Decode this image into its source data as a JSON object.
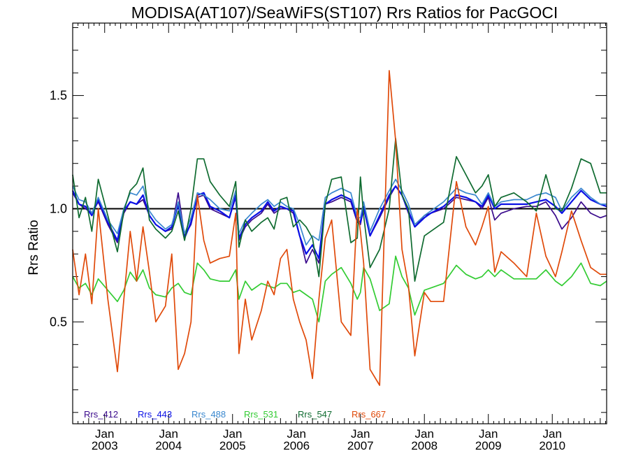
{
  "chart_data": {
    "type": "line",
    "title": "MODISA(AT107)/SeaWiFS(ST107)  Rrs Ratios for PacGOCI",
    "ylabel": "Rrs Ratio",
    "xlabel": "",
    "xlim": [
      2002.5,
      2010.85
    ],
    "ylim": [
      0.05,
      1.82
    ],
    "y_ticks": [
      {
        "value": 0.5,
        "label": "0.5"
      },
      {
        "value": 1.0,
        "label": "1.0"
      },
      {
        "value": 1.5,
        "label": "1.5"
      }
    ],
    "x_ticks": [
      {
        "value": 2003.0,
        "month": "Jan",
        "year": "2003"
      },
      {
        "value": 2004.0,
        "month": "Jan",
        "year": "2004"
      },
      {
        "value": 2005.0,
        "month": "Jan",
        "year": "2005"
      },
      {
        "value": 2006.0,
        "month": "Jan",
        "year": "2006"
      },
      {
        "value": 2007.0,
        "month": "Jan",
        "year": "2007"
      },
      {
        "value": 2008.0,
        "month": "Jan",
        "year": "2008"
      },
      {
        "value": 2009.0,
        "month": "Jan",
        "year": "2009"
      },
      {
        "value": 2010.0,
        "month": "Jan",
        "year": "2010"
      }
    ],
    "reference_line": 1.0,
    "legend_position": "bottom-left",
    "series": [
      {
        "name": "Rrs_412",
        "color": "#3a0a8c",
        "x": [
          2002.5,
          2002.6,
          2002.7,
          2002.8,
          2002.9,
          2003.05,
          2003.2,
          2003.3,
          2003.4,
          2003.5,
          2003.6,
          2003.7,
          2003.8,
          2003.95,
          2004.05,
          2004.15,
          2004.25,
          2004.35,
          2004.45,
          2004.55,
          2004.65,
          2004.8,
          2004.95,
          2005.05,
          2005.1,
          2005.2,
          2005.3,
          2005.45,
          2005.55,
          2005.65,
          2005.75,
          2005.85,
          2005.95,
          2006.05,
          2006.15,
          2006.25,
          2006.35,
          2006.45,
          2006.55,
          2006.7,
          2006.85,
          2006.95,
          2007.0,
          2007.05,
          2007.15,
          2007.3,
          2007.45,
          2007.55,
          2007.65,
          2007.75,
          2007.85,
          2008.0,
          2008.1,
          2008.3,
          2008.5,
          2008.65,
          2008.8,
          2008.9,
          2009.0,
          2009.1,
          2009.2,
          2009.4,
          2009.6,
          2009.75,
          2009.9,
          2010.05,
          2010.15,
          2010.3,
          2010.45,
          2010.6,
          2010.75,
          2010.85
        ],
        "values": [
          1.07,
          1.02,
          1.0,
          0.98,
          1.03,
          0.93,
          0.85,
          0.98,
          1.03,
          1.02,
          1.04,
          0.97,
          0.93,
          0.9,
          0.91,
          1.07,
          0.88,
          0.93,
          1.05,
          1.06,
          1.0,
          0.98,
          0.96,
          1.05,
          0.86,
          0.92,
          0.95,
          0.98,
          1.02,
          0.98,
          1.0,
          1.0,
          0.98,
          0.88,
          0.76,
          0.82,
          0.76,
          1.02,
          1.03,
          1.05,
          1.03,
          0.94,
          0.93,
          1.0,
          0.88,
          0.96,
          1.05,
          1.1,
          1.06,
          0.98,
          0.92,
          0.97,
          0.98,
          1.0,
          1.05,
          1.04,
          1.03,
          1.0,
          1.05,
          0.95,
          0.98,
          1.0,
          1.01,
          1.01,
          1.03,
          0.97,
          0.91,
          0.96,
          1.03,
          0.98,
          0.96,
          0.97
        ]
      },
      {
        "name": "Rrs_443",
        "color": "#0a10e6",
        "x": [
          2002.5,
          2002.6,
          2002.7,
          2002.8,
          2002.9,
          2003.05,
          2003.2,
          2003.3,
          2003.4,
          2003.5,
          2003.6,
          2003.7,
          2003.8,
          2003.95,
          2004.05,
          2004.15,
          2004.25,
          2004.35,
          2004.45,
          2004.55,
          2004.65,
          2004.8,
          2004.95,
          2005.05,
          2005.1,
          2005.2,
          2005.3,
          2005.45,
          2005.55,
          2005.65,
          2005.75,
          2005.85,
          2005.95,
          2006.05,
          2006.15,
          2006.25,
          2006.35,
          2006.45,
          2006.55,
          2006.7,
          2006.85,
          2006.95,
          2007.0,
          2007.05,
          2007.15,
          2007.3,
          2007.45,
          2007.55,
          2007.65,
          2007.75,
          2007.85,
          2008.0,
          2008.1,
          2008.3,
          2008.5,
          2008.65,
          2008.8,
          2008.9,
          2009.0,
          2009.1,
          2009.2,
          2009.4,
          2009.6,
          2009.75,
          2009.9,
          2010.05,
          2010.15,
          2010.3,
          2010.45,
          2010.6,
          2010.75,
          2010.85
        ],
        "values": [
          1.08,
          1.02,
          1.01,
          0.97,
          1.04,
          0.94,
          0.86,
          0.99,
          1.03,
          1.02,
          1.06,
          0.97,
          0.93,
          0.9,
          0.92,
          1.02,
          0.87,
          0.94,
          1.06,
          1.07,
          1.01,
          0.99,
          0.96,
          1.06,
          0.87,
          0.93,
          0.96,
          0.99,
          1.03,
          0.99,
          1.01,
          1.0,
          0.99,
          0.88,
          0.8,
          0.84,
          0.78,
          1.02,
          1.04,
          1.06,
          1.04,
          0.95,
          0.94,
          1.01,
          0.88,
          0.97,
          1.06,
          1.1,
          1.06,
          0.99,
          0.92,
          0.96,
          0.98,
          1.01,
          1.06,
          1.05,
          1.03,
          1.01,
          1.06,
          1.0,
          1.02,
          1.02,
          1.02,
          1.03,
          1.04,
          1.01,
          0.98,
          1.03,
          1.08,
          1.04,
          1.02,
          1.01
        ]
      },
      {
        "name": "Rrs_488",
        "color": "#3a88cf",
        "x": [
          2002.5,
          2002.6,
          2002.7,
          2002.8,
          2002.9,
          2003.05,
          2003.2,
          2003.3,
          2003.4,
          2003.5,
          2003.6,
          2003.7,
          2003.8,
          2003.95,
          2004.05,
          2004.15,
          2004.25,
          2004.35,
          2004.45,
          2004.55,
          2004.65,
          2004.8,
          2004.95,
          2005.05,
          2005.1,
          2005.2,
          2005.3,
          2005.45,
          2005.55,
          2005.65,
          2005.75,
          2005.85,
          2005.95,
          2006.05,
          2006.15,
          2006.25,
          2006.35,
          2006.45,
          2006.55,
          2006.7,
          2006.85,
          2006.95,
          2007.0,
          2007.05,
          2007.15,
          2007.3,
          2007.45,
          2007.55,
          2007.65,
          2007.75,
          2007.85,
          2008.0,
          2008.1,
          2008.3,
          2008.5,
          2008.65,
          2008.8,
          2008.9,
          2009.0,
          2009.1,
          2009.2,
          2009.4,
          2009.6,
          2009.75,
          2009.9,
          2010.05,
          2010.15,
          2010.3,
          2010.45,
          2010.6,
          2010.75,
          2010.85
        ],
        "values": [
          1.1,
          1.04,
          1.03,
          0.98,
          1.05,
          0.95,
          0.89,
          1.0,
          1.07,
          1.06,
          1.1,
          0.99,
          0.95,
          0.91,
          0.93,
          1.03,
          0.89,
          0.96,
          1.07,
          1.06,
          1.04,
          1.0,
          0.99,
          1.08,
          0.89,
          0.95,
          0.98,
          1.02,
          1.04,
          1.01,
          1.03,
          1.01,
          1.0,
          0.93,
          0.84,
          0.88,
          0.86,
          1.05,
          1.07,
          1.09,
          1.07,
          0.96,
          0.96,
          1.03,
          0.9,
          1.0,
          1.08,
          1.13,
          1.08,
          1.02,
          0.93,
          0.97,
          0.99,
          1.03,
          1.09,
          1.07,
          1.06,
          1.02,
          1.07,
          1.01,
          1.03,
          1.04,
          1.04,
          1.06,
          1.07,
          1.05,
          0.99,
          1.05,
          1.09,
          1.05,
          1.02,
          1.02
        ]
      },
      {
        "name": "Rrs_531",
        "color": "#33cc33",
        "x": [
          2002.5,
          2002.6,
          2002.7,
          2002.8,
          2002.9,
          2003.05,
          2003.2,
          2003.3,
          2003.4,
          2003.5,
          2003.6,
          2003.7,
          2003.8,
          2003.95,
          2004.05,
          2004.15,
          2004.25,
          2004.35,
          2004.45,
          2004.55,
          2004.65,
          2004.8,
          2004.95,
          2005.05,
          2005.1,
          2005.2,
          2005.3,
          2005.45,
          2005.55,
          2005.65,
          2005.75,
          2005.85,
          2005.95,
          2006.05,
          2006.15,
          2006.25,
          2006.35,
          2006.45,
          2006.55,
          2006.7,
          2006.85,
          2006.95,
          2007.0,
          2007.05,
          2007.15,
          2007.3,
          2007.45,
          2007.55,
          2007.65,
          2007.75,
          2007.85,
          2008.0,
          2008.1,
          2008.3,
          2008.5,
          2008.65,
          2008.8,
          2008.9,
          2009.0,
          2009.1,
          2009.2,
          2009.4,
          2009.6,
          2009.75,
          2009.9,
          2010.05,
          2010.15,
          2010.3,
          2010.45,
          2010.6,
          2010.75,
          2010.85
        ],
        "values": [
          0.7,
          0.65,
          0.67,
          0.62,
          0.69,
          0.64,
          0.59,
          0.64,
          0.72,
          0.68,
          0.73,
          0.65,
          0.62,
          0.61,
          0.65,
          0.67,
          0.63,
          0.62,
          0.76,
          0.73,
          0.69,
          0.68,
          0.68,
          0.73,
          0.6,
          0.68,
          0.64,
          0.67,
          0.66,
          0.65,
          0.67,
          0.67,
          0.63,
          0.64,
          0.62,
          0.6,
          0.5,
          0.68,
          0.71,
          0.74,
          0.67,
          0.6,
          0.63,
          0.74,
          0.69,
          0.55,
          0.58,
          0.79,
          0.7,
          0.65,
          0.53,
          0.64,
          0.65,
          0.67,
          0.75,
          0.71,
          0.69,
          0.7,
          0.73,
          0.7,
          0.73,
          0.69,
          0.69,
          0.69,
          0.73,
          0.68,
          0.66,
          0.7,
          0.76,
          0.67,
          0.66,
          0.68
        ]
      },
      {
        "name": "Rrs_547",
        "color": "#0f6b30",
        "x": [
          2002.5,
          2002.6,
          2002.7,
          2002.8,
          2002.9,
          2003.05,
          2003.2,
          2003.3,
          2003.4,
          2003.5,
          2003.6,
          2003.7,
          2003.8,
          2003.95,
          2004.05,
          2004.15,
          2004.25,
          2004.35,
          2004.45,
          2004.55,
          2004.65,
          2004.8,
          2004.95,
          2005.05,
          2005.1,
          2005.2,
          2005.3,
          2005.45,
          2005.55,
          2005.65,
          2005.75,
          2005.85,
          2005.95,
          2006.05,
          2006.15,
          2006.25,
          2006.35,
          2006.45,
          2006.55,
          2006.7,
          2006.85,
          2006.95,
          2007.0,
          2007.05,
          2007.15,
          2007.3,
          2007.45,
          2007.55,
          2007.65,
          2007.75,
          2007.85,
          2008.0,
          2008.1,
          2008.3,
          2008.5,
          2008.65,
          2008.8,
          2008.9,
          2009.0,
          2009.1,
          2009.2,
          2009.4,
          2009.6,
          2009.75,
          2009.9,
          2010.05,
          2010.15,
          2010.3,
          2010.45,
          2010.6,
          2010.75,
          2010.85
        ],
        "values": [
          1.15,
          0.96,
          1.05,
          0.9,
          1.13,
          0.97,
          0.81,
          0.99,
          1.08,
          1.11,
          1.18,
          0.95,
          0.91,
          0.87,
          0.9,
          0.99,
          0.86,
          1.0,
          1.22,
          1.22,
          1.12,
          1.06,
          1.01,
          1.12,
          0.83,
          0.95,
          0.9,
          0.94,
          0.96,
          0.91,
          1.04,
          1.05,
          0.92,
          0.95,
          0.92,
          0.87,
          0.7,
          1.02,
          1.13,
          1.14,
          0.85,
          0.87,
          1.14,
          0.97,
          0.74,
          0.82,
          1.0,
          1.31,
          1.06,
          1.0,
          0.68,
          0.88,
          0.9,
          0.94,
          1.23,
          1.15,
          1.07,
          1.1,
          1.15,
          1.01,
          1.05,
          1.07,
          1.03,
          0.99,
          1.15,
          1.0,
          0.99,
          1.09,
          1.22,
          1.2,
          1.07,
          1.07
        ]
      },
      {
        "name": "Rrs_667",
        "color": "#e04a0a",
        "x": [
          2002.5,
          2002.6,
          2002.7,
          2002.8,
          2002.9,
          2003.05,
          2003.2,
          2003.3,
          2003.4,
          2003.5,
          2003.6,
          2003.7,
          2003.8,
          2003.95,
          2004.05,
          2004.15,
          2004.25,
          2004.35,
          2004.45,
          2004.55,
          2004.65,
          2004.8,
          2004.95,
          2005.05,
          2005.1,
          2005.2,
          2005.3,
          2005.45,
          2005.55,
          2005.65,
          2005.75,
          2005.85,
          2005.95,
          2006.05,
          2006.15,
          2006.25,
          2006.35,
          2006.45,
          2006.55,
          2006.7,
          2006.85,
          2006.95,
          2007.0,
          2007.05,
          2007.15,
          2007.3,
          2007.45,
          2007.55,
          2007.65,
          2007.75,
          2007.85,
          2008.0,
          2008.1,
          2008.3,
          2008.5,
          2008.65,
          2008.8,
          2008.9,
          2009.0,
          2009.1,
          2009.2,
          2009.4,
          2009.6,
          2009.75,
          2009.9,
          2010.05,
          2010.15,
          2010.3,
          2010.45,
          2010.6,
          2010.75,
          2010.85
        ],
        "values": [
          0.82,
          0.62,
          0.8,
          0.58,
          1.0,
          0.6,
          0.28,
          0.6,
          0.9,
          0.68,
          0.92,
          0.72,
          0.5,
          0.57,
          0.8,
          0.29,
          0.36,
          0.5,
          1.06,
          0.86,
          0.76,
          0.78,
          0.79,
          0.98,
          0.36,
          0.6,
          0.42,
          0.55,
          0.68,
          0.62,
          0.78,
          0.82,
          0.6,
          0.5,
          0.42,
          0.25,
          0.6,
          0.87,
          0.95,
          0.5,
          0.44,
          1.0,
          0.9,
          0.76,
          0.29,
          0.22,
          1.61,
          1.3,
          0.82,
          0.66,
          0.35,
          0.63,
          0.59,
          0.59,
          1.12,
          0.92,
          0.84,
          0.92,
          1.01,
          0.72,
          0.81,
          0.76,
          0.7,
          0.98,
          0.79,
          0.7,
          0.81,
          0.99,
          0.86,
          0.74,
          0.71,
          0.71
        ]
      }
    ]
  }
}
